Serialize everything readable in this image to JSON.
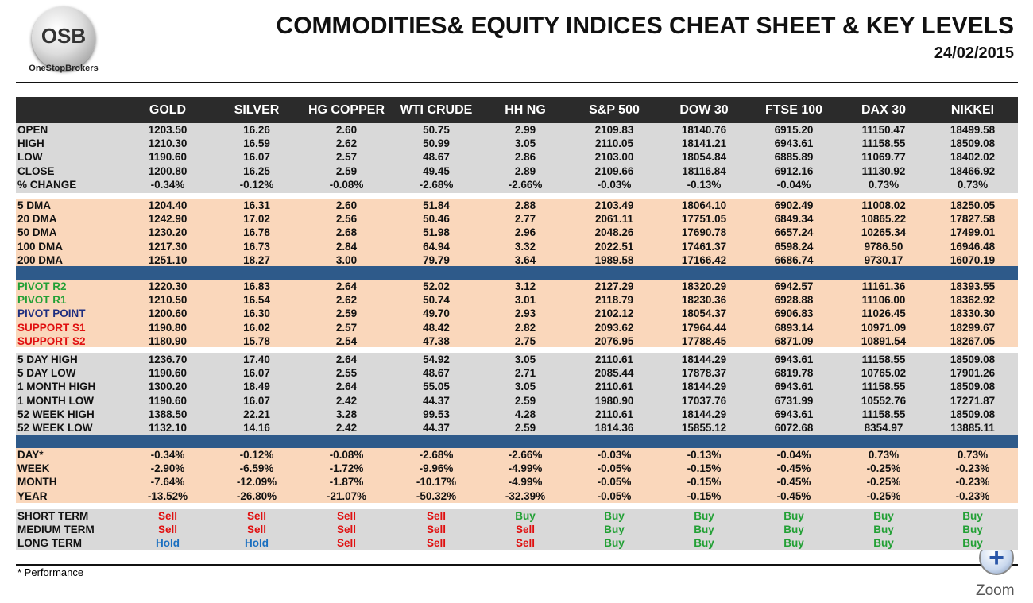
{
  "header": {
    "logo_text": "OSB",
    "logo_caption": "OneStopBrokers",
    "title": "COMMODITIES& EQUITY INDICES CHEAT SHEET & KEY LEVELS",
    "date": "24/02/2015"
  },
  "table": {
    "columns": [
      "GOLD",
      "SILVER",
      "HG COPPER",
      "WTI CRUDE",
      "HH NG",
      "S&P 500",
      "DOW 30",
      "FTSE 100",
      "DAX 30",
      "NIKKEI"
    ],
    "sections": [
      {
        "background": "#d9d9d9",
        "rows": [
          {
            "label": "OPEN",
            "values": [
              "1203.50",
              "16.26",
              "2.60",
              "50.75",
              "2.99",
              "2109.83",
              "18140.76",
              "6915.20",
              "11150.47",
              "18499.58"
            ]
          },
          {
            "label": "HIGH",
            "values": [
              "1210.30",
              "16.59",
              "2.62",
              "50.99",
              "3.05",
              "2110.05",
              "18141.21",
              "6943.61",
              "11158.55",
              "18509.08"
            ]
          },
          {
            "label": "LOW",
            "values": [
              "1190.60",
              "16.07",
              "2.57",
              "48.67",
              "2.86",
              "2103.00",
              "18054.84",
              "6885.89",
              "11069.77",
              "18402.02"
            ]
          },
          {
            "label": "CLOSE",
            "values": [
              "1200.80",
              "16.25",
              "2.59",
              "49.45",
              "2.89",
              "2109.66",
              "18116.84",
              "6912.16",
              "11130.92",
              "18466.92"
            ]
          },
          {
            "label": "% CHANGE",
            "values": [
              "-0.34%",
              "-0.12%",
              "-0.08%",
              "-2.68%",
              "-2.66%",
              "-0.03%",
              "-0.13%",
              "-0.04%",
              "0.73%",
              "0.73%"
            ]
          }
        ]
      },
      {
        "background": "#fad7bb",
        "rows": [
          {
            "label": "5 DMA",
            "values": [
              "1204.40",
              "16.31",
              "2.60",
              "51.84",
              "2.88",
              "2103.49",
              "18064.10",
              "6902.49",
              "11008.02",
              "18250.05"
            ]
          },
          {
            "label": "20 DMA",
            "values": [
              "1242.90",
              "17.02",
              "2.56",
              "50.46",
              "2.77",
              "2061.11",
              "17751.05",
              "6849.34",
              "10865.22",
              "17827.58"
            ]
          },
          {
            "label": "50 DMA",
            "values": [
              "1230.20",
              "16.78",
              "2.68",
              "51.98",
              "2.96",
              "2048.26",
              "17690.78",
              "6657.24",
              "10265.34",
              "17499.01"
            ]
          },
          {
            "label": "100 DMA",
            "values": [
              "1217.30",
              "16.73",
              "2.84",
              "64.94",
              "3.32",
              "2022.51",
              "17461.37",
              "6598.24",
              "9786.50",
              "16946.48"
            ]
          },
          {
            "label": "200 DMA",
            "values": [
              "1251.10",
              "18.27",
              "3.00",
              "79.79",
              "3.64",
              "1989.58",
              "17166.42",
              "6686.74",
              "9730.17",
              "16070.19"
            ]
          }
        ]
      },
      {
        "background": "#fad7bb",
        "rows": [
          {
            "label": "PIVOT R2",
            "label_color": "#22a035",
            "values": [
              "1220.30",
              "16.83",
              "2.64",
              "52.02",
              "3.12",
              "2127.29",
              "18320.29",
              "6942.57",
              "11161.36",
              "18393.55"
            ]
          },
          {
            "label": "PIVOT R1",
            "label_color": "#22a035",
            "values": [
              "1210.50",
              "16.54",
              "2.62",
              "50.74",
              "3.01",
              "2118.79",
              "18230.36",
              "6928.88",
              "11106.00",
              "18362.92"
            ]
          },
          {
            "label": "PIVOT POINT",
            "label_color": "#1f2f80",
            "values": [
              "1200.60",
              "16.30",
              "2.59",
              "49.70",
              "2.93",
              "2102.12",
              "18054.37",
              "6906.83",
              "11026.45",
              "18330.30"
            ]
          },
          {
            "label": "SUPPORT S1",
            "label_color": "#e01010",
            "values": [
              "1190.80",
              "16.02",
              "2.57",
              "48.42",
              "2.82",
              "2093.62",
              "17964.44",
              "6893.14",
              "10971.09",
              "18299.67"
            ]
          },
          {
            "label": "SUPPORT S2",
            "label_color": "#e01010",
            "values": [
              "1180.90",
              "15.78",
              "2.54",
              "47.38",
              "2.75",
              "2076.95",
              "17788.45",
              "6871.09",
              "10891.54",
              "18267.05"
            ]
          }
        ]
      },
      {
        "background": "#d9d9d9",
        "rows": [
          {
            "label": "5 DAY HIGH",
            "values": [
              "1236.70",
              "17.40",
              "2.64",
              "54.92",
              "3.05",
              "2110.61",
              "18144.29",
              "6943.61",
              "11158.55",
              "18509.08"
            ]
          },
          {
            "label": "5 DAY LOW",
            "values": [
              "1190.60",
              "16.07",
              "2.55",
              "48.67",
              "2.71",
              "2085.44",
              "17878.37",
              "6819.78",
              "10765.02",
              "17901.26"
            ]
          },
          {
            "label": "1 MONTH HIGH",
            "values": [
              "1300.20",
              "18.49",
              "2.64",
              "55.05",
              "3.05",
              "2110.61",
              "18144.29",
              "6943.61",
              "11158.55",
              "18509.08"
            ]
          },
          {
            "label": "1 MONTH LOW",
            "values": [
              "1190.60",
              "16.07",
              "2.42",
              "44.37",
              "2.59",
              "1980.90",
              "17037.76",
              "6731.99",
              "10552.76",
              "17271.87"
            ]
          },
          {
            "label": "52 WEEK HIGH",
            "values": [
              "1388.50",
              "22.21",
              "3.28",
              "99.53",
              "4.28",
              "2110.61",
              "18144.29",
              "6943.61",
              "11158.55",
              "18509.08"
            ]
          },
          {
            "label": "52 WEEK LOW",
            "values": [
              "1132.10",
              "14.16",
              "2.42",
              "44.37",
              "2.59",
              "1814.36",
              "15855.12",
              "6072.68",
              "8354.97",
              "13885.11"
            ]
          }
        ]
      },
      {
        "background": "#fad7bb",
        "rows": [
          {
            "label": "DAY*",
            "values": [
              "-0.34%",
              "-0.12%",
              "-0.08%",
              "-2.68%",
              "-2.66%",
              "-0.03%",
              "-0.13%",
              "-0.04%",
              "0.73%",
              "0.73%"
            ]
          },
          {
            "label": "WEEK",
            "values": [
              "-2.90%",
              "-6.59%",
              "-1.72%",
              "-9.96%",
              "-4.99%",
              "-0.05%",
              "-0.15%",
              "-0.45%",
              "-0.25%",
              "-0.23%"
            ]
          },
          {
            "label": "MONTH",
            "values": [
              "-7.64%",
              "-12.09%",
              "-1.87%",
              "-10.17%",
              "-4.99%",
              "-0.05%",
              "-0.15%",
              "-0.45%",
              "-0.25%",
              "-0.23%"
            ]
          },
          {
            "label": "YEAR",
            "values": [
              "-13.52%",
              "-26.80%",
              "-21.07%",
              "-50.32%",
              "-32.39%",
              "-0.05%",
              "-0.15%",
              "-0.45%",
              "-0.25%",
              "-0.23%"
            ]
          }
        ]
      },
      {
        "background": "#d9d9d9",
        "rows": [
          {
            "label": "SHORT TERM",
            "values": [
              "Sell",
              "Sell",
              "Sell",
              "Sell",
              "Buy",
              "Buy",
              "Buy",
              "Buy",
              "Buy",
              "Buy"
            ],
            "value_colors": [
              "#e01010",
              "#e01010",
              "#e01010",
              "#e01010",
              "#22a035",
              "#22a035",
              "#22a035",
              "#22a035",
              "#22a035",
              "#22a035"
            ]
          },
          {
            "label": "MEDIUM TERM",
            "values": [
              "Sell",
              "Sell",
              "Sell",
              "Sell",
              "Sell",
              "Buy",
              "Buy",
              "Buy",
              "Buy",
              "Buy"
            ],
            "value_colors": [
              "#e01010",
              "#e01010",
              "#e01010",
              "#e01010",
              "#e01010",
              "#22a035",
              "#22a035",
              "#22a035",
              "#22a035",
              "#22a035"
            ]
          },
          {
            "label": "LONG TERM",
            "values": [
              "Hold",
              "Hold",
              "Sell",
              "Sell",
              "Sell",
              "Buy",
              "Buy",
              "Buy",
              "Buy",
              "Buy"
            ],
            "value_colors": [
              "#1a6fc0",
              "#1a6fc0",
              "#e01010",
              "#e01010",
              "#e01010",
              "#22a035",
              "#22a035",
              "#22a035",
              "#22a035",
              "#22a035"
            ]
          }
        ]
      }
    ]
  },
  "footnote": "* Performance",
  "zoom_label": "Zoom"
}
